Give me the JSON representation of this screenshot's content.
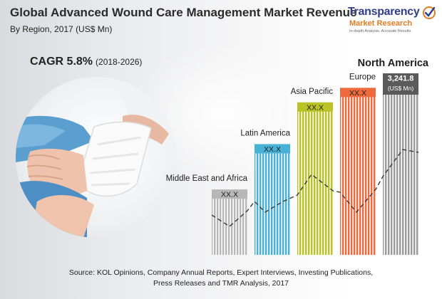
{
  "header": {
    "title": "Global Advanced Wound Care Management Market Revenue",
    "subtitle": "By Region, 2017 (US$ Mn)"
  },
  "cagr": {
    "value": "CAGR 5.8%",
    "period": "(2018-2026)"
  },
  "logo": {
    "name": "Transparency",
    "sub": "Market Research",
    "tagline": "In-depth Analysis. Accurate Results."
  },
  "source": {
    "line1": "Source: KOL Opinions, Company Annual Reports, Expert Interviews, Investing Publications,",
    "line2": "Press Releases and TMR Analysis, 2017"
  },
  "colors": {
    "Middle East and Africa": "#b7b7b7",
    "Latin America": "#47b2d6",
    "Asia Pacific": "#b9c324",
    "Europe": "#ef6b3e",
    "North America": "#9a9a9a",
    "label_box": "#5a5a5a"
  },
  "chart_data": {
    "type": "bar",
    "title": "Global Advanced Wound Care Management Market Revenue",
    "subtitle": "By Region, 2017 (US$ Mn)",
    "categories": [
      "Middle East and Africa",
      "Latin America",
      "Asia Pacific",
      "Europe",
      "North America"
    ],
    "value_labels": [
      "XX.X",
      "XX.X",
      "XX.X",
      "XX.X",
      "3,241.8"
    ],
    "value_units": [
      "",
      "",
      "",
      "",
      "(US$ Mn)"
    ],
    "values": [
      null,
      null,
      null,
      null,
      3241.8
    ],
    "relative_heights": [
      0.36,
      0.61,
      0.84,
      0.92,
      1.0
    ],
    "highlight_category": "North America",
    "xlabel": "",
    "ylabel": "",
    "grid": false,
    "legend": "none"
  }
}
